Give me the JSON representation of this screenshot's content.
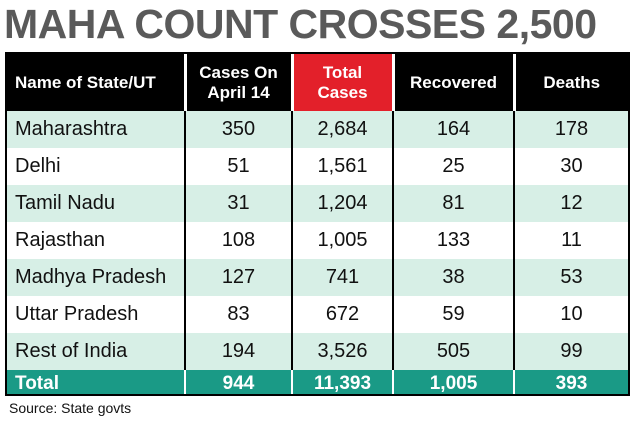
{
  "headline": "MAHA COUNT CROSSES 2,500",
  "table": {
    "headers": [
      "Name of State/UT",
      "Cases On April 14",
      "Total Cases",
      "Recovered",
      "Deaths"
    ],
    "highlight_color": "#e3202a",
    "rows": [
      [
        "Maharashtra",
        "350",
        "2,684",
        "164",
        "178"
      ],
      [
        "Delhi",
        "51",
        "1,561",
        "25",
        "30"
      ],
      [
        "Tamil Nadu",
        "31",
        "1,204",
        "81",
        "12"
      ],
      [
        "Rajasthan",
        "108",
        "1,005",
        "133",
        "11"
      ],
      [
        "Madhya Pradesh",
        "127",
        "741",
        "38",
        "53"
      ],
      [
        "Uttar Pradesh",
        "83",
        "672",
        "59",
        "10"
      ],
      [
        "Rest of India",
        "194",
        "3,526",
        "505",
        "99"
      ]
    ],
    "total": [
      "Total",
      "944",
      "11,393",
      "1,005",
      "393"
    ],
    "row_tint": "#d7efe6",
    "total_color": "#1a9a86"
  },
  "source": "Source: State govts"
}
